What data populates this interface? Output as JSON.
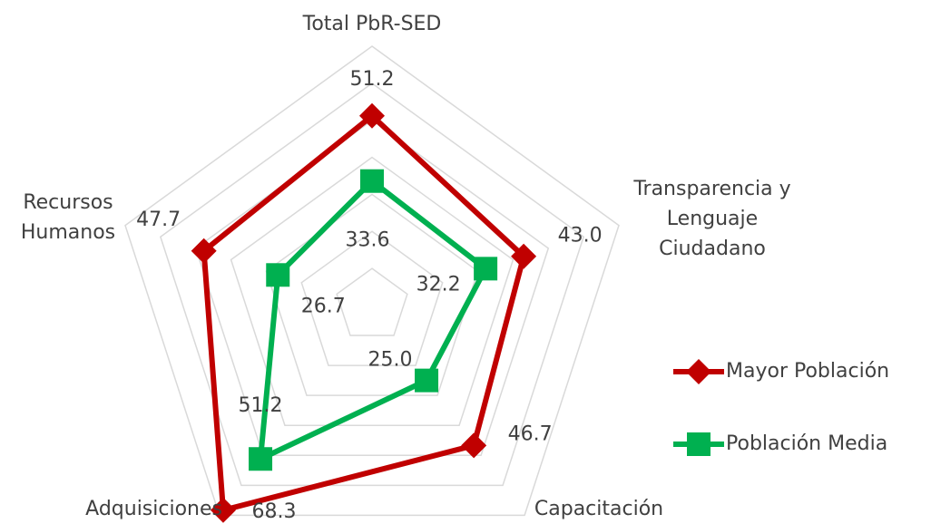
{
  "chart_data": {
    "type": "radar",
    "categories": [
      "Total PbR-SED",
      "Transparencia y Lenguaje Ciudadano",
      "Capacitación",
      "Adquisiciones",
      "Recursos Humanos"
    ],
    "series": [
      {
        "name": "Mayor Población",
        "color": "#c00000",
        "values": [
          51.2,
          43.0,
          46.7,
          68.3,
          47.7
        ],
        "value_labels": [
          "51.2",
          "43.0",
          "46.7",
          "68.3",
          "47.7"
        ]
      },
      {
        "name": "Población Media",
        "color": "#00b050",
        "values": [
          33.6,
          32.2,
          25.0,
          51.2,
          26.7
        ],
        "value_labels": [
          "33.6",
          "32.2",
          "25.0",
          "51.2",
          "26.7"
        ]
      }
    ],
    "ylim": [
      0,
      70
    ],
    "yticks": [
      10,
      20,
      30,
      40,
      50,
      60,
      70
    ],
    "grid": true,
    "legend": "right"
  }
}
